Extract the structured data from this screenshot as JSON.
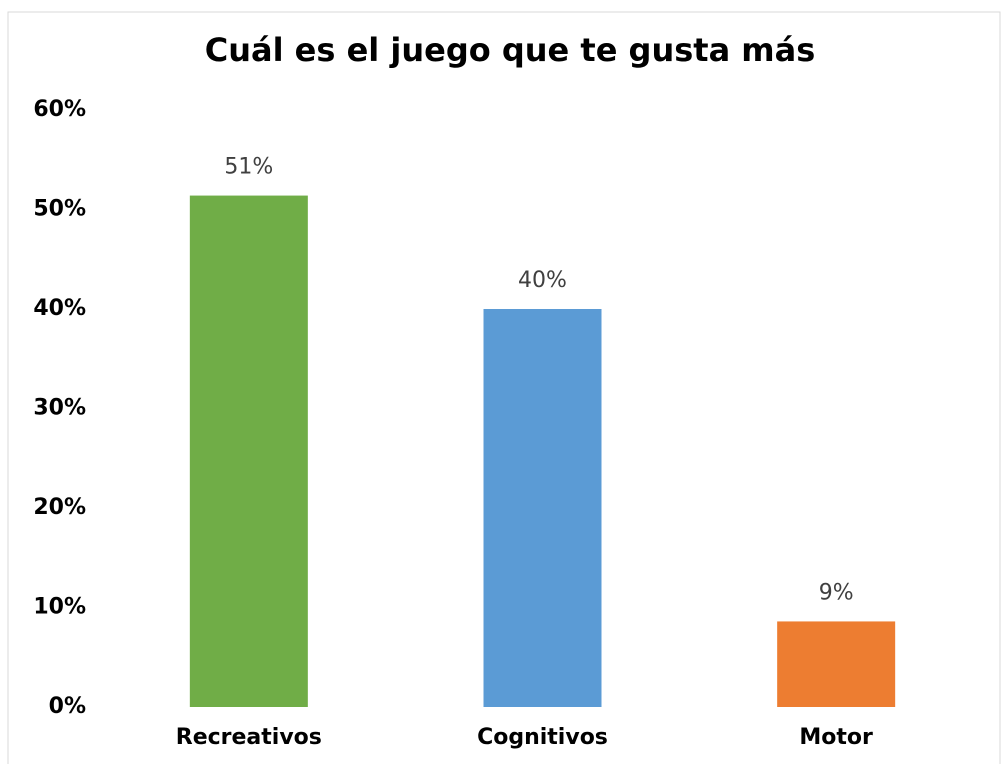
{
  "chart_data": {
    "type": "bar",
    "title": "Cuál es el juego que te gusta más",
    "categories": [
      "Recreativos",
      "Cognitivos",
      "Motor"
    ],
    "values": [
      51.4,
      40,
      8.6
    ],
    "value_labels": [
      "51%",
      "40%",
      "9%"
    ],
    "colors": [
      "#70ad47",
      "#5b9bd5",
      "#ed7d31"
    ],
    "ylim": [
      0,
      60
    ],
    "yticks": [
      {
        "value": 0,
        "label": "0%"
      },
      {
        "value": 10,
        "label": "10%"
      },
      {
        "value": 20,
        "label": "20%"
      },
      {
        "value": 30,
        "label": "30%"
      },
      {
        "value": 40,
        "label": "40%"
      },
      {
        "value": 50,
        "label": "50%"
      },
      {
        "value": 60,
        "label": "60%"
      }
    ],
    "grid": false
  }
}
